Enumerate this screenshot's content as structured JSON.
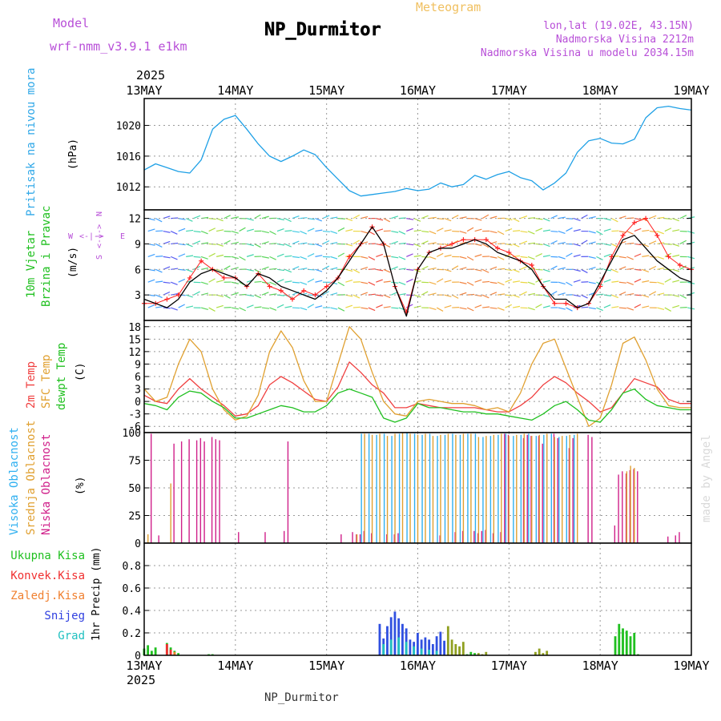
{
  "header": {
    "model_label": "Model",
    "model_name": "wrf-nmm_v3.9.1 e1km",
    "meteogram_label": "Meteogram",
    "station": "NP_Durmitor",
    "lonlat": "lon,lat (19.02E, 43.15N)",
    "altitude": "Nadmorska Visina 2212m",
    "model_altitude": "Nadmorska Visina u modelu 2034.15m",
    "credit": "made by Angel",
    "footer_station": "NP_Durmitor",
    "colors": {
      "model": "#b84fd8",
      "meteogram": "#f0c060",
      "credit": "#d9d9d9"
    }
  },
  "time_axis": {
    "year": "2025",
    "ticks": [
      "13MAY",
      "14MAY",
      "15MAY",
      "16MAY",
      "17MAY",
      "18MAY",
      "19MAY"
    ],
    "start": "2025-05-13T00",
    "end": "2025-05-19T00"
  },
  "panel_labels": {
    "pressure": [
      "Pritisak na nivou mora"
    ],
    "pressure_unit": "(hPa)",
    "wind": [
      "10m Vjetar",
      "Brzina i Pravac"
    ],
    "wind_unit": "(m/s)",
    "compass": {
      "w": "W",
      "e": "E",
      "s": "S",
      "n": "N",
      "arrow": "<-|->"
    },
    "temp": [
      "2m Temp",
      "SFC Temp",
      "dewpt Temp"
    ],
    "temp_unit": "(C)",
    "cloud": [
      "Visoka Oblacnost",
      "Srednja Oblacnost",
      "Niska Oblacnost"
    ],
    "cloud_unit": "(%)",
    "precip": [
      "Ukupna Kisa",
      "Konvek.Kisa",
      "Zaledj.Kisa",
      "Snijeg",
      "Grad"
    ],
    "precip_unit": "1hr Precip (mm)"
  },
  "chart_data": [
    {
      "type": "line",
      "panel": "pressure",
      "ylabel": "(hPa)",
      "ylim": [
        1009,
        1023.5
      ],
      "yticks": [
        1012,
        1016,
        1020
      ],
      "color": "#1ea0e6",
      "x": [
        0,
        3,
        6,
        9,
        12,
        15,
        18,
        21,
        24,
        27,
        30,
        33,
        36,
        39,
        42,
        45,
        48,
        51,
        54,
        57,
        60,
        63,
        66,
        69,
        72,
        75,
        78,
        81,
        84,
        87,
        90,
        93,
        96,
        99,
        102,
        105,
        108,
        111,
        114,
        117,
        120,
        123,
        126,
        129,
        132,
        135,
        138,
        141,
        144
      ],
      "values": [
        1014.2,
        1015,
        1014.5,
        1014,
        1013.8,
        1015.5,
        1019.5,
        1020.8,
        1021.3,
        1019.5,
        1017.6,
        1016,
        1015.3,
        1016,
        1016.8,
        1016.2,
        1014.5,
        1013,
        1011.5,
        1010.8,
        1011,
        1011.2,
        1011.4,
        1011.8,
        1011.5,
        1011.7,
        1012.5,
        1012,
        1012.3,
        1013.5,
        1013,
        1013.6,
        1014,
        1013.2,
        1012.8,
        1011.6,
        1012.5,
        1013.8,
        1016.5,
        1018,
        1018.3,
        1017.7,
        1017.6,
        1018.2,
        1021,
        1022.3,
        1022.5,
        1022.2,
        1022
      ]
    },
    {
      "type": "line",
      "panel": "wind",
      "ylabel": "(m/s)",
      "ylim": [
        0,
        13
      ],
      "yticks": [
        3,
        6,
        9,
        12
      ],
      "x": [
        0,
        3,
        6,
        9,
        12,
        15,
        18,
        21,
        24,
        27,
        30,
        33,
        36,
        39,
        42,
        45,
        48,
        51,
        54,
        57,
        60,
        63,
        66,
        69,
        72,
        75,
        78,
        81,
        84,
        87,
        90,
        93,
        96,
        99,
        102,
        105,
        108,
        111,
        114,
        117,
        120,
        123,
        126,
        129,
        132,
        135,
        138,
        141,
        144
      ],
      "series": [
        {
          "key": "speed",
          "color": "#000000",
          "values": [
            2.5,
            2,
            1.5,
            2.5,
            4.5,
            5.5,
            6,
            5.5,
            5,
            4,
            5.5,
            5,
            4,
            3.5,
            3,
            2.5,
            3.5,
            5,
            7,
            9,
            11,
            9,
            4,
            0.5,
            6,
            8,
            8.5,
            8.5,
            9,
            9.5,
            9,
            8,
            7.5,
            7,
            6,
            4,
            2.5,
            2.5,
            1.5,
            2,
            4.5,
            7,
            9.5,
            10,
            8.5,
            7,
            6,
            5,
            4.5
          ]
        },
        {
          "key": "gust",
          "color": "#ff2020",
          "values": [
            2,
            2,
            2.5,
            3,
            5,
            7,
            6,
            5,
            5,
            4,
            5.5,
            4,
            3.5,
            2.5,
            3.5,
            3,
            4,
            5,
            7.5,
            9,
            11,
            9,
            4,
            1,
            6,
            8,
            8.5,
            9,
            9.5,
            9.5,
            9.5,
            8.5,
            8,
            7,
            6.5,
            4,
            2,
            2,
            1.5,
            2,
            4,
            7.5,
            10,
            11.5,
            12,
            10,
            7.5,
            6.5,
            6
          ]
        }
      ]
    },
    {
      "type": "line",
      "panel": "temperature",
      "ylabel": "(C)",
      "ylim": [
        -7.5,
        19.5
      ],
      "yticks": [
        -6,
        -3,
        0,
        3,
        6,
        9,
        12,
        15,
        18
      ],
      "x": [
        0,
        3,
        6,
        9,
        12,
        15,
        18,
        21,
        24,
        27,
        30,
        33,
        36,
        39,
        42,
        45,
        48,
        51,
        54,
        57,
        60,
        63,
        66,
        69,
        72,
        75,
        78,
        81,
        84,
        87,
        90,
        93,
        96,
        99,
        102,
        105,
        108,
        111,
        114,
        117,
        120,
        123,
        126,
        129,
        132,
        135,
        138,
        141,
        144
      ],
      "series": [
        {
          "name": "2m Temp",
          "color": "#f04040",
          "values": [
            1.5,
            0,
            -0.5,
            3,
            5.5,
            3,
            1,
            -1,
            -3.5,
            -3,
            -1,
            4,
            6,
            4.5,
            2.5,
            0.5,
            0,
            3.5,
            9.5,
            7,
            4,
            2,
            -1.5,
            -1.5,
            -0.5,
            -1,
            -1.5,
            -1.5,
            -1.5,
            -1.5,
            -2,
            -2.5,
            -2.5,
            -1,
            1,
            4,
            6,
            4.5,
            2,
            0,
            -2.5,
            -1.5,
            2,
            5.5,
            4.5,
            3.5,
            0.5,
            -0.5,
            -0.5
          ]
        },
        {
          "name": "SFC Temp",
          "color": "#e0a030",
          "values": [
            3,
            0,
            1,
            9,
            15,
            12,
            3,
            -2,
            -4.5,
            -3.5,
            1.5,
            12,
            17,
            13,
            5,
            0,
            0,
            9,
            18,
            15,
            7,
            0,
            -3,
            -3.5,
            0,
            0.5,
            0,
            -0.5,
            -0.5,
            -1,
            -2,
            -1.5,
            -2.5,
            2,
            9,
            14,
            15,
            8,
            1,
            -6,
            -4,
            4,
            14,
            15.5,
            10,
            3,
            -1,
            -1.5,
            -1.5
          ]
        },
        {
          "name": "dewpt Temp",
          "color": "#20c020",
          "values": [
            -0.5,
            -1,
            -2,
            1,
            2.5,
            2,
            0,
            -1.5,
            -4,
            -4,
            -3,
            -2,
            -1,
            -1.5,
            -2.5,
            -2.5,
            -1,
            2,
            3,
            2,
            1,
            -4,
            -5,
            -4,
            -0.5,
            -1.5,
            -1.5,
            -2,
            -2.5,
            -2.5,
            -3,
            -3,
            -3.5,
            -4,
            -4.5,
            -3,
            -1,
            0,
            -2,
            -4.5,
            -5,
            -2,
            2,
            3,
            0.5,
            -1,
            -1.5,
            -2,
            -2
          ]
        }
      ]
    },
    {
      "type": "bar",
      "panel": "cloud",
      "ylabel": "(%)",
      "ylim": [
        0,
        100
      ],
      "yticks": [
        0,
        25,
        50,
        75,
        100
      ],
      "series": [
        {
          "name": "Niska Oblacnost",
          "color": "#d0208a",
          "x": [
            2,
            4,
            8,
            10,
            12,
            14,
            15,
            16,
            18,
            19,
            20,
            25,
            32,
            37,
            38,
            52,
            55,
            56,
            57,
            58,
            60,
            64,
            66,
            67,
            78,
            82,
            84,
            87,
            88,
            89,
            90,
            92,
            94,
            95,
            96,
            100,
            101,
            102,
            104,
            105,
            108,
            109,
            112,
            113,
            117,
            118,
            124,
            125,
            126,
            127,
            128,
            129,
            130,
            138,
            140,
            141
          ],
          "values": [
            99,
            7,
            90,
            92,
            94,
            93,
            95,
            92,
            96,
            94,
            93,
            10,
            10,
            11,
            92,
            8,
            10,
            8,
            8,
            11,
            9,
            8,
            8,
            9,
            7,
            10,
            11,
            11,
            9,
            11,
            12,
            9,
            10,
            99,
            98,
            95,
            98,
            97,
            97,
            90,
            99,
            95,
            86,
            95,
            98,
            96,
            16,
            62,
            65,
            63,
            66,
            67,
            65,
            6,
            7,
            10
          ]
        },
        {
          "name": "Srednja Oblacnost",
          "color": "#e0a030",
          "x": [
            1,
            7,
            56,
            58,
            60,
            62,
            64,
            66,
            68,
            70,
            72,
            74,
            76,
            78,
            80,
            82,
            84,
            86,
            88,
            90,
            92,
            94,
            96,
            98,
            100,
            102,
            104,
            106,
            108,
            110,
            112,
            114,
            127,
            128,
            129
          ],
          "values": [
            8,
            54,
            8,
            99,
            98,
            99,
            97,
            99,
            100,
            99,
            98,
            99,
            97,
            98,
            99,
            98,
            99,
            99,
            96,
            97,
            98,
            99,
            97,
            98,
            99,
            97,
            98,
            99,
            96,
            97,
            98,
            99,
            65,
            70,
            68
          ]
        },
        {
          "name": "Visoka Oblacnost",
          "color": "#30b0f0",
          "x": [
            57,
            59,
            61,
            63,
            65,
            67,
            69,
            71,
            73,
            75,
            77,
            79,
            81,
            83,
            85,
            87,
            89,
            91,
            93,
            95,
            97,
            99,
            101,
            103,
            105,
            107,
            109,
            111,
            113
          ],
          "values": [
            99,
            99,
            98,
            99,
            97,
            99,
            100,
            99,
            98,
            99,
            97,
            98,
            99,
            98,
            99,
            99,
            96,
            97,
            98,
            99,
            97,
            98,
            99,
            97,
            98,
            99,
            96,
            97,
            98
          ]
        }
      ]
    },
    {
      "type": "bar",
      "panel": "precipitation",
      "ylabel": "1hr Precip (mm)",
      "ylim": [
        0,
        1.0
      ],
      "yticks": [
        0,
        0.2,
        0.4,
        0.6,
        0.8
      ],
      "series": [
        {
          "name": "Ukupna Kisa",
          "color": "#20c020",
          "x": [
            0,
            1,
            2,
            3,
            6,
            7,
            8,
            9,
            17,
            18,
            85,
            86,
            87,
            88,
            124,
            125,
            126,
            127,
            128,
            129,
            130
          ],
          "values": [
            0.06,
            0.09,
            0.04,
            0.07,
            0.11,
            0.07,
            0.04,
            0.02,
            0.01,
            0.01,
            0.01,
            0.03,
            0.02,
            0.01,
            0.17,
            0.28,
            0.24,
            0.22,
            0.17,
            0.2,
            0.01
          ]
        },
        {
          "name": "Konvek.Kisa",
          "color": "#f03030",
          "x": [
            6,
            7
          ],
          "values": [
            0.1,
            0.05
          ]
        },
        {
          "name": "Zaledj.Kisa",
          "color": "#f08030",
          "x": [
            8
          ],
          "values": [
            0.03
          ]
        },
        {
          "name": "Snijeg",
          "color": "#3050e0",
          "x": [
            62,
            63,
            64,
            65,
            66,
            67,
            68,
            69,
            70,
            71,
            72,
            73,
            74,
            75,
            76,
            77,
            78,
            79
          ],
          "values": [
            0.28,
            0.15,
            0.26,
            0.34,
            0.39,
            0.33,
            0.28,
            0.24,
            0.14,
            0.12,
            0.2,
            0.14,
            0.16,
            0.14,
            0.1,
            0.17,
            0.21,
            0.13
          ]
        },
        {
          "name": "Grad",
          "color": "#20c0c0",
          "x": [
            63,
            65,
            67,
            69,
            71,
            73,
            75,
            77
          ],
          "values": [
            0.1,
            0.14,
            0.16,
            0.12,
            0.08,
            0.06,
            0.05,
            0.04
          ]
        },
        {
          "name": "Olive",
          "color": "#90a020",
          "x": [
            80,
            81,
            82,
            83,
            84,
            88,
            89,
            90,
            103,
            104,
            105,
            106
          ],
          "values": [
            0.26,
            0.14,
            0.1,
            0.08,
            0.12,
            0.02,
            0.01,
            0.03,
            0.03,
            0.06,
            0.02,
            0.04
          ]
        }
      ]
    }
  ]
}
